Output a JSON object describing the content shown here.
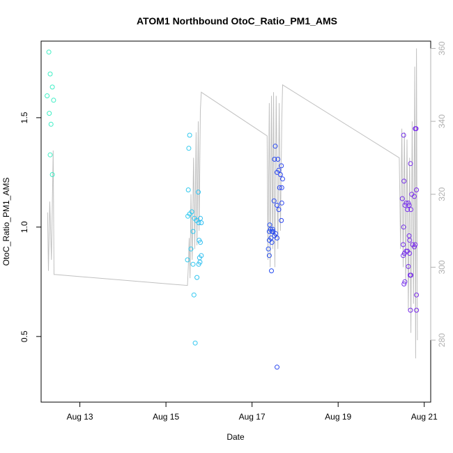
{
  "chart_data": {
    "type": "scatter",
    "title": "ATOM1 Northbound OtoC_Ratio_PM1_AMS",
    "xlabel": "Date",
    "ylabel": "OtoC_Ratio_PM1_AMS",
    "x_unit": "days (August)",
    "xlim": [
      12.1,
      21.15
    ],
    "ylim": [
      0.2,
      1.85
    ],
    "y2lim": [
      263,
      362
    ],
    "x_ticks": [
      13,
      15,
      17,
      19,
      21
    ],
    "x_tick_labels": [
      "Aug 13",
      "Aug 15",
      "Aug 17",
      "Aug 19",
      "Aug 21"
    ],
    "y_ticks": [
      0.5,
      1.0,
      1.5
    ],
    "y_tick_labels": [
      "0.5",
      "1.0",
      "1.5"
    ],
    "y2_ticks": [
      280,
      300,
      320,
      340,
      360
    ],
    "y2_tick_labels": [
      "280",
      "300",
      "320",
      "340",
      "360"
    ],
    "y2_color": "#b0b0b0",
    "line_color": "#c0c0c0",
    "point_color_scale": "cyan-to-violet over time",
    "series": [
      {
        "type": "scatter",
        "points": [
          [
            12.28,
            1.8
          ],
          [
            12.31,
            1.7
          ],
          [
            12.36,
            1.64
          ],
          [
            12.24,
            1.6
          ],
          [
            12.39,
            1.58
          ],
          [
            12.29,
            1.52
          ],
          [
            12.33,
            1.47
          ],
          [
            12.31,
            1.33
          ],
          [
            12.36,
            1.24
          ],
          [
            15.55,
            1.42
          ],
          [
            15.53,
            1.36
          ],
          [
            15.75,
            1.16
          ],
          [
            15.52,
            1.17
          ],
          [
            15.6,
            1.07
          ],
          [
            15.51,
            1.05
          ],
          [
            15.55,
            1.06
          ],
          [
            15.66,
            1.04
          ],
          [
            15.71,
            1.03
          ],
          [
            15.8,
            1.04
          ],
          [
            15.76,
            1.02
          ],
          [
            15.82,
            1.02
          ],
          [
            15.63,
            0.98
          ],
          [
            15.77,
            0.94
          ],
          [
            15.8,
            0.93
          ],
          [
            15.58,
            0.9
          ],
          [
            15.82,
            0.87
          ],
          [
            15.78,
            0.86
          ],
          [
            15.5,
            0.85
          ],
          [
            15.63,
            0.83
          ],
          [
            15.79,
            0.84
          ],
          [
            15.76,
            0.83
          ],
          [
            15.72,
            0.77
          ],
          [
            15.65,
            0.69
          ],
          [
            15.68,
            0.47
          ],
          [
            17.54,
            1.37
          ],
          [
            17.52,
            1.31
          ],
          [
            17.6,
            1.31
          ],
          [
            17.68,
            1.28
          ],
          [
            17.62,
            1.26
          ],
          [
            17.58,
            1.25
          ],
          [
            17.66,
            1.24
          ],
          [
            17.71,
            1.22
          ],
          [
            17.69,
            1.18
          ],
          [
            17.64,
            1.18
          ],
          [
            17.51,
            1.12
          ],
          [
            17.58,
            1.1
          ],
          [
            17.69,
            1.11
          ],
          [
            17.62,
            1.08
          ],
          [
            17.68,
            1.03
          ],
          [
            17.41,
            1.01
          ],
          [
            17.48,
            0.99
          ],
          [
            17.4,
            0.98
          ],
          [
            17.46,
            0.98
          ],
          [
            17.49,
            0.98
          ],
          [
            17.43,
            0.99
          ],
          [
            17.55,
            0.97
          ],
          [
            17.52,
            0.96
          ],
          [
            17.58,
            0.95
          ],
          [
            17.44,
            0.95
          ],
          [
            17.4,
            0.94
          ],
          [
            17.46,
            0.93
          ],
          [
            17.38,
            0.9
          ],
          [
            17.4,
            0.87
          ],
          [
            17.45,
            0.8
          ],
          [
            17.58,
            0.36
          ],
          [
            20.79,
            1.45
          ],
          [
            20.81,
            1.45
          ],
          [
            20.52,
            1.42
          ],
          [
            20.68,
            1.29
          ],
          [
            20.53,
            1.21
          ],
          [
            20.82,
            1.17
          ],
          [
            20.71,
            1.15
          ],
          [
            20.77,
            1.14
          ],
          [
            20.49,
            1.13
          ],
          [
            20.58,
            1.11
          ],
          [
            20.63,
            1.11
          ],
          [
            20.55,
            1.1
          ],
          [
            20.65,
            1.1
          ],
          [
            20.61,
            1.08
          ],
          [
            20.69,
            1.08
          ],
          [
            20.52,
            1.0
          ],
          [
            20.65,
            0.96
          ],
          [
            20.66,
            0.94
          ],
          [
            20.51,
            0.92
          ],
          [
            20.73,
            0.92
          ],
          [
            20.79,
            0.92
          ],
          [
            20.77,
            0.91
          ],
          [
            20.61,
            0.89
          ],
          [
            20.58,
            0.89
          ],
          [
            20.54,
            0.88
          ],
          [
            20.51,
            0.87
          ],
          [
            20.66,
            0.88
          ],
          [
            20.63,
            0.82
          ],
          [
            20.67,
            0.78
          ],
          [
            20.69,
            0.78
          ],
          [
            20.55,
            0.75
          ],
          [
            20.53,
            0.74
          ],
          [
            20.82,
            0.69
          ],
          [
            20.68,
            0.62
          ],
          [
            20.82,
            0.62
          ]
        ]
      },
      {
        "type": "line",
        "axis": "right",
        "points": [
          [
            12.25,
            315
          ],
          [
            12.27,
            299
          ],
          [
            12.3,
            318
          ],
          [
            12.34,
            302
          ],
          [
            12.38,
            332
          ],
          [
            12.4,
            298
          ],
          [
            12.42,
            298
          ],
          [
            15.5,
            295
          ],
          [
            15.52,
            300
          ],
          [
            15.54,
            308
          ],
          [
            15.56,
            297
          ],
          [
            15.58,
            320
          ],
          [
            15.61,
            302
          ],
          [
            15.64,
            330
          ],
          [
            15.67,
            305
          ],
          [
            15.7,
            337
          ],
          [
            15.72,
            306
          ],
          [
            15.75,
            340
          ],
          [
            15.77,
            310
          ],
          [
            15.8,
            343
          ],
          [
            15.82,
            348
          ],
          [
            17.35,
            336
          ],
          [
            17.37,
            302
          ],
          [
            17.4,
            345
          ],
          [
            17.42,
            300
          ],
          [
            17.45,
            347
          ],
          [
            17.48,
            305
          ],
          [
            17.5,
            348
          ],
          [
            17.53,
            300
          ],
          [
            17.56,
            347
          ],
          [
            17.6,
            305
          ],
          [
            17.63,
            345
          ],
          [
            17.66,
            310
          ],
          [
            17.69,
            340
          ],
          [
            17.71,
            350
          ],
          [
            20.42,
            330
          ],
          [
            20.45,
            305
          ],
          [
            20.48,
            338
          ],
          [
            20.51,
            300
          ],
          [
            20.54,
            337
          ],
          [
            20.57,
            295
          ],
          [
            20.6,
            335
          ],
          [
            20.63,
            288
          ],
          [
            20.66,
            330
          ],
          [
            20.69,
            282
          ],
          [
            20.72,
            340
          ],
          [
            20.75,
            290
          ],
          [
            20.78,
            355
          ],
          [
            20.8,
            275
          ],
          [
            20.82,
            360
          ],
          [
            20.84,
            280
          ]
        ]
      }
    ]
  }
}
